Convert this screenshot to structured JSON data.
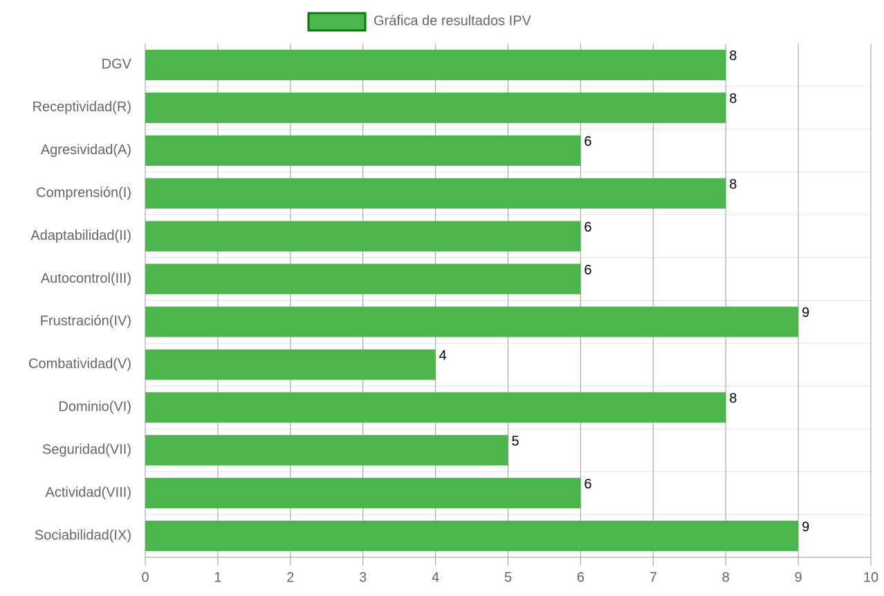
{
  "chart_data": {
    "type": "hbar",
    "categories": [
      "DGV",
      "Receptividad(R)",
      "Agresividad(A)",
      "Comprensión(I)",
      "Adaptabilidad(II)",
      "Autocontrol(III)",
      "Frustración(IV)",
      "Combatividad(V)",
      "Dominio(VI)",
      "Seguridad(VII)",
      "Actividad(VIII)",
      "Sociabilidad(IX)"
    ],
    "series": [
      {
        "name": "Gráfica de resultados IPV",
        "color": "#4cb54c",
        "border_color": "#0b7a0b",
        "values": [
          8,
          8,
          6,
          8,
          6,
          6,
          9,
          4,
          8,
          5,
          6,
          9
        ]
      }
    ],
    "xlim": [
      0,
      10
    ],
    "xticks": [
      0,
      1,
      2,
      3,
      4,
      5,
      6,
      7,
      8,
      9,
      10
    ],
    "grid": true,
    "legend": "top"
  }
}
